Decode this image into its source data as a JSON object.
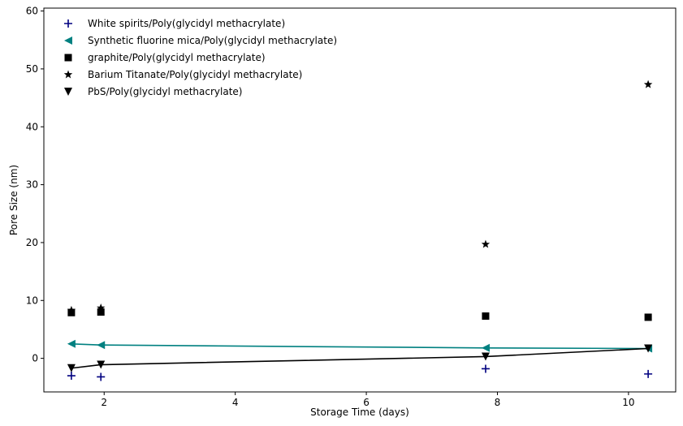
{
  "chart_data": {
    "type": "scatter",
    "xlabel": "Storage Time (days)",
    "ylabel": "Pore Size (nm)",
    "xlim": [
      1.08,
      10.72
    ],
    "ylim": [
      -5.8,
      60.5
    ],
    "xticks": [
      2,
      4,
      6,
      8,
      10
    ],
    "yticks": [
      0,
      10,
      20,
      30,
      40,
      50,
      60
    ],
    "grid": false,
    "legend_position": "top-left",
    "series": [
      {
        "name": "White spirits/Poly(glycidyl methacrylate)",
        "marker": "plus",
        "color": "#000080",
        "line": false,
        "x": [
          1.5,
          1.95,
          7.82,
          10.3
        ],
        "y": [
          -3.0,
          -3.2,
          -1.8,
          -2.7
        ]
      },
      {
        "name": "Synthetic fluorine mica/Poly(glycidyl methacrylate)",
        "marker": "triangle-left",
        "color": "#008080",
        "line": true,
        "x": [
          1.5,
          1.95,
          7.82,
          10.3
        ],
        "y": [
          2.5,
          2.3,
          1.8,
          1.7
        ]
      },
      {
        "name": "graphite/Poly(glycidyl methacrylate)",
        "marker": "square",
        "color": "#000000",
        "line": false,
        "x": [
          1.5,
          1.95,
          7.82,
          10.3
        ],
        "y": [
          7.9,
          8.0,
          7.3,
          7.1
        ]
      },
      {
        "name": "Barium Titanate/Poly(glycidyl methacrylate)",
        "marker": "star",
        "color": "#000000",
        "line": false,
        "x": [
          1.5,
          1.95,
          7.82,
          10.3
        ],
        "y": [
          8.3,
          8.7,
          19.7,
          47.3
        ]
      },
      {
        "name": "PbS/Poly(glycidyl methacrylate)",
        "marker": "triangle-down",
        "color": "#000000",
        "line": true,
        "x": [
          1.5,
          1.95,
          7.82,
          10.3
        ],
        "y": [
          -1.7,
          -1.1,
          0.3,
          1.7
        ]
      }
    ]
  }
}
